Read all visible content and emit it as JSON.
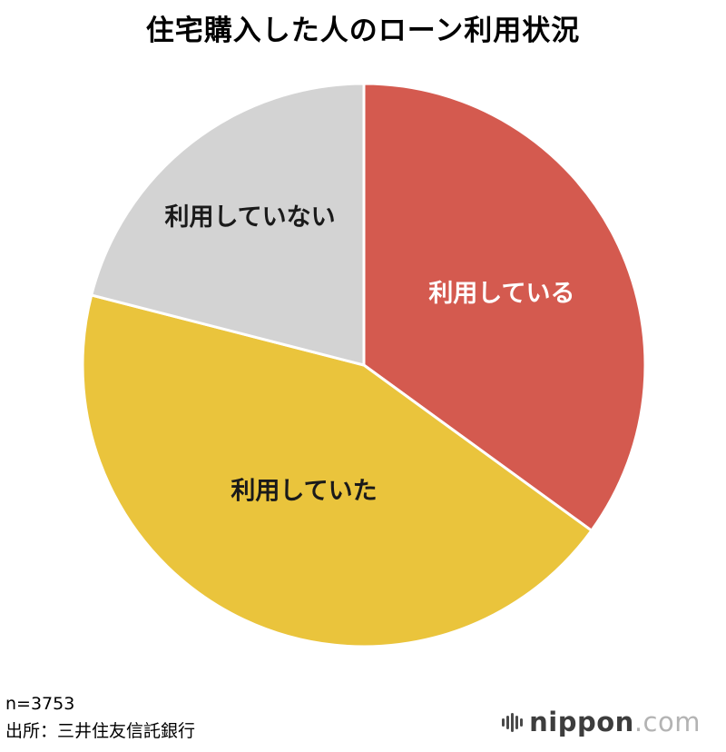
{
  "title": "住宅購入した人のローン利用状況",
  "footer": {
    "n_label": "n=3753",
    "source": "出所：三井住友信託銀行"
  },
  "logo": {
    "name": "nippon",
    "tld": ".com"
  },
  "chart_data": {
    "type": "pie",
    "title": "住宅購入した人のローン利用状況",
    "sample_size_text": "n=3753",
    "source_text": "出所：三井住友信託銀行",
    "start_angle_deg": 0,
    "direction": "clockwise",
    "legend_position": "inside-slices",
    "slices": [
      {
        "id": "riyou-shiteiru",
        "label": "利用している",
        "value": 35,
        "color": "#d45a4f",
        "label_color": "#ffffff",
        "label_r": 0.55
      },
      {
        "id": "riyou-shiteita",
        "label": "利用していた",
        "value": 44,
        "color": "#eac43c",
        "label_color": "#1a1a1a",
        "label_r": 0.5
      },
      {
        "id": "riyou-shiteinai",
        "label": "利用していない",
        "value": 21,
        "color": "#d3d3d3",
        "label_color": "#1a1a1a",
        "label_r": 0.66
      }
    ]
  }
}
